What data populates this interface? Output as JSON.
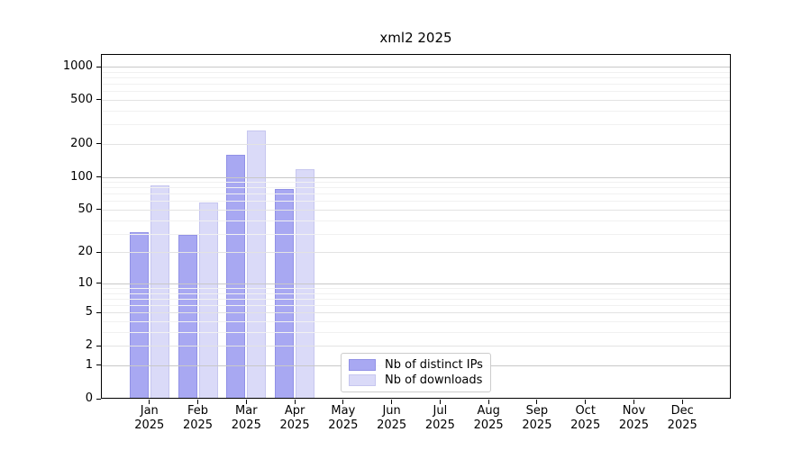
{
  "title": "xml2 2025",
  "colors": {
    "ips_fill": "#a8a8f2",
    "ips_edge": "#9191e6",
    "downloads_fill": "#dadaf8",
    "downloads_edge": "#c6c6ef",
    "grid_major": "#c8c8c8",
    "grid_labeled": "#e3e3e3",
    "grid_minor": "#f1f1f1",
    "axis": "#000000",
    "legend_border": "#cccccc"
  },
  "y_axis": {
    "tick_labels": [
      "0",
      "1",
      "2",
      "5",
      "10",
      "20",
      "50",
      "100",
      "200",
      "500",
      "1000"
    ],
    "minor_gridlines": [
      3,
      4,
      6,
      7,
      8,
      9,
      30,
      40,
      60,
      70,
      80,
      90,
      300,
      400,
      600,
      700,
      800,
      900
    ]
  },
  "x_axis": {
    "months": [
      "Jan",
      "Feb",
      "Mar",
      "Apr",
      "May",
      "Jun",
      "Jul",
      "Aug",
      "Sep",
      "Oct",
      "Nov",
      "Dec"
    ],
    "year": "2025"
  },
  "chart_data": {
    "type": "bar",
    "title": "xml2 2025",
    "categories": [
      "Jan 2025",
      "Feb 2025",
      "Mar 2025",
      "Apr 2025",
      "May 2025",
      "Jun 2025",
      "Jul 2025",
      "Aug 2025",
      "Sep 2025",
      "Oct 2025",
      "Nov 2025",
      "Dec 2025"
    ],
    "series": [
      {
        "name": "Nb of distinct IPs",
        "color_key": "ips",
        "values": [
          31,
          29,
          160,
          78,
          0,
          0,
          0,
          0,
          0,
          0,
          0,
          0
        ]
      },
      {
        "name": "Nb of downloads",
        "color_key": "downloads",
        "values": [
          84,
          58,
          265,
          117,
          0,
          0,
          0,
          0,
          0,
          0,
          0,
          0
        ]
      }
    ],
    "yscale": "log1p",
    "ylim": [
      0,
      1300
    ],
    "yticks": [
      0,
      1,
      2,
      5,
      10,
      20,
      50,
      100,
      200,
      500,
      1000
    ],
    "xlabel": "",
    "ylabel": "",
    "grid": "horizontal",
    "legend_position": "inside lower-center"
  }
}
